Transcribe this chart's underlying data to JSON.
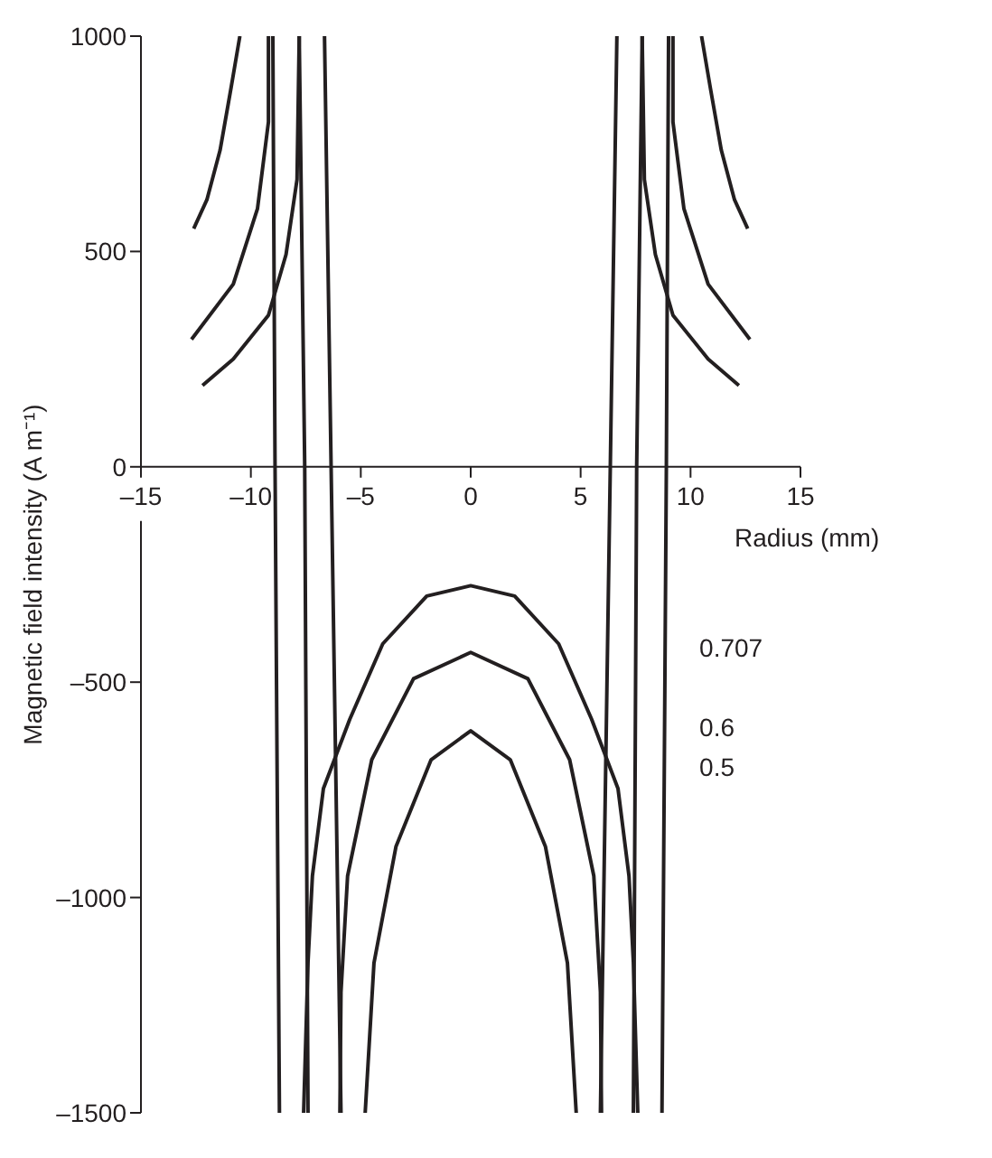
{
  "chart_data": {
    "type": "line",
    "xlabel": "Radius (mm)",
    "ylabel": "Magnetic field intensity (A m⁻¹)",
    "xlim": [
      -15,
      15
    ],
    "xticks": [
      {
        "value": -15,
        "label": "–15"
      },
      {
        "value": -10,
        "label": "–10"
      },
      {
        "value": -5,
        "label": "–5"
      },
      0,
      5,
      10,
      15
    ],
    "ylim": [
      -1500,
      1000
    ],
    "yticks": [
      {
        "value": -1500,
        "label": "–1500"
      },
      {
        "value": -1000,
        "label": "–1000"
      },
      {
        "value": -500,
        "label": "–500"
      },
      0,
      500,
      1000
    ],
    "series": [
      {
        "name": "0.707",
        "color": "#231f20",
        "x": [
          -7.6,
          -7.4,
          -7.2,
          -6.7,
          -5.5,
          -4,
          -2,
          0,
          2,
          4,
          5.5,
          6.7,
          7.2,
          7.4,
          7.6
        ],
        "values": [
          -1500,
          -1150,
          -950,
          -747,
          -586,
          -411,
          -300,
          -276,
          -300,
          -411,
          -586,
          -747,
          -950,
          -1150,
          -1500
        ]
      },
      {
        "name": "0.6",
        "color": "#231f20",
        "x": [
          -5.95,
          -5.9,
          -5.6,
          -4.5,
          -2.6,
          0,
          2.6,
          4.5,
          5.6,
          5.9,
          5.95
        ],
        "values": [
          -1500,
          -1219,
          -950,
          -680,
          -492,
          -431,
          -492,
          -680,
          -950,
          -1219,
          -1500
        ]
      },
      {
        "name": "0.5",
        "color": "#231f20",
        "x": [
          -4.8,
          -4.4,
          -3.4,
          -1.8,
          0,
          1.8,
          3.4,
          4.4,
          4.8
        ],
        "values": [
          -1500,
          -1152,
          -882,
          -680,
          -613,
          -680,
          -882,
          -1152,
          -1500
        ]
      },
      {
        "color": "#231f20",
        "x": [
          -9,
          -8.9,
          -8.7
        ],
        "values": [
          1000,
          0,
          -1500
        ]
      },
      {
        "color": "#231f20",
        "x": [
          -7.8,
          -7.55,
          -7.4
        ],
        "values": [
          1000,
          0,
          -1500
        ]
      },
      {
        "color": "#231f20",
        "x": [
          -6.65,
          -6.35,
          -5.9
        ],
        "values": [
          1000,
          0,
          -1500
        ]
      },
      {
        "color": "#231f20",
        "x": [
          6.65,
          6.35,
          5.9
        ],
        "values": [
          1000,
          0,
          -1500
        ]
      },
      {
        "color": "#231f20",
        "x": [
          7.8,
          7.55,
          7.4
        ],
        "values": [
          1000,
          0,
          -1500
        ]
      },
      {
        "color": "#231f20",
        "x": [
          9,
          8.9,
          8.7
        ],
        "values": [
          1000,
          0,
          -1500
        ]
      },
      {
        "color": "#231f20",
        "x": [
          -12.6,
          -12,
          -11.4,
          -10.9,
          -10.5
        ],
        "values": [
          553,
          620,
          735,
          880,
          1000
        ]
      },
      {
        "color": "#231f20",
        "x": [
          -12.7,
          -10.8,
          -9.7,
          -9.2,
          -9.2
        ],
        "values": [
          296,
          424,
          599,
          801,
          1000
        ]
      },
      {
        "color": "#231f20",
        "x": [
          -12.2,
          -10.8,
          -9.2,
          -8.4,
          -7.9,
          -7.8
        ],
        "values": [
          189,
          250,
          352,
          493,
          667,
          1000
        ]
      },
      {
        "color": "#231f20",
        "x": [
          10.5,
          10.9,
          11.4,
          12,
          12.6
        ],
        "values": [
          1000,
          880,
          735,
          620,
          553
        ]
      },
      {
        "color": "#231f20",
        "x": [
          9.2,
          9.2,
          9.7,
          10.8,
          12.7
        ],
        "values": [
          1000,
          801,
          599,
          424,
          296
        ]
      },
      {
        "color": "#231f20",
        "x": [
          7.8,
          7.9,
          8.4,
          9.2,
          10.8,
          12.2
        ],
        "values": [
          1000,
          667,
          493,
          352,
          250,
          189
        ]
      }
    ]
  }
}
